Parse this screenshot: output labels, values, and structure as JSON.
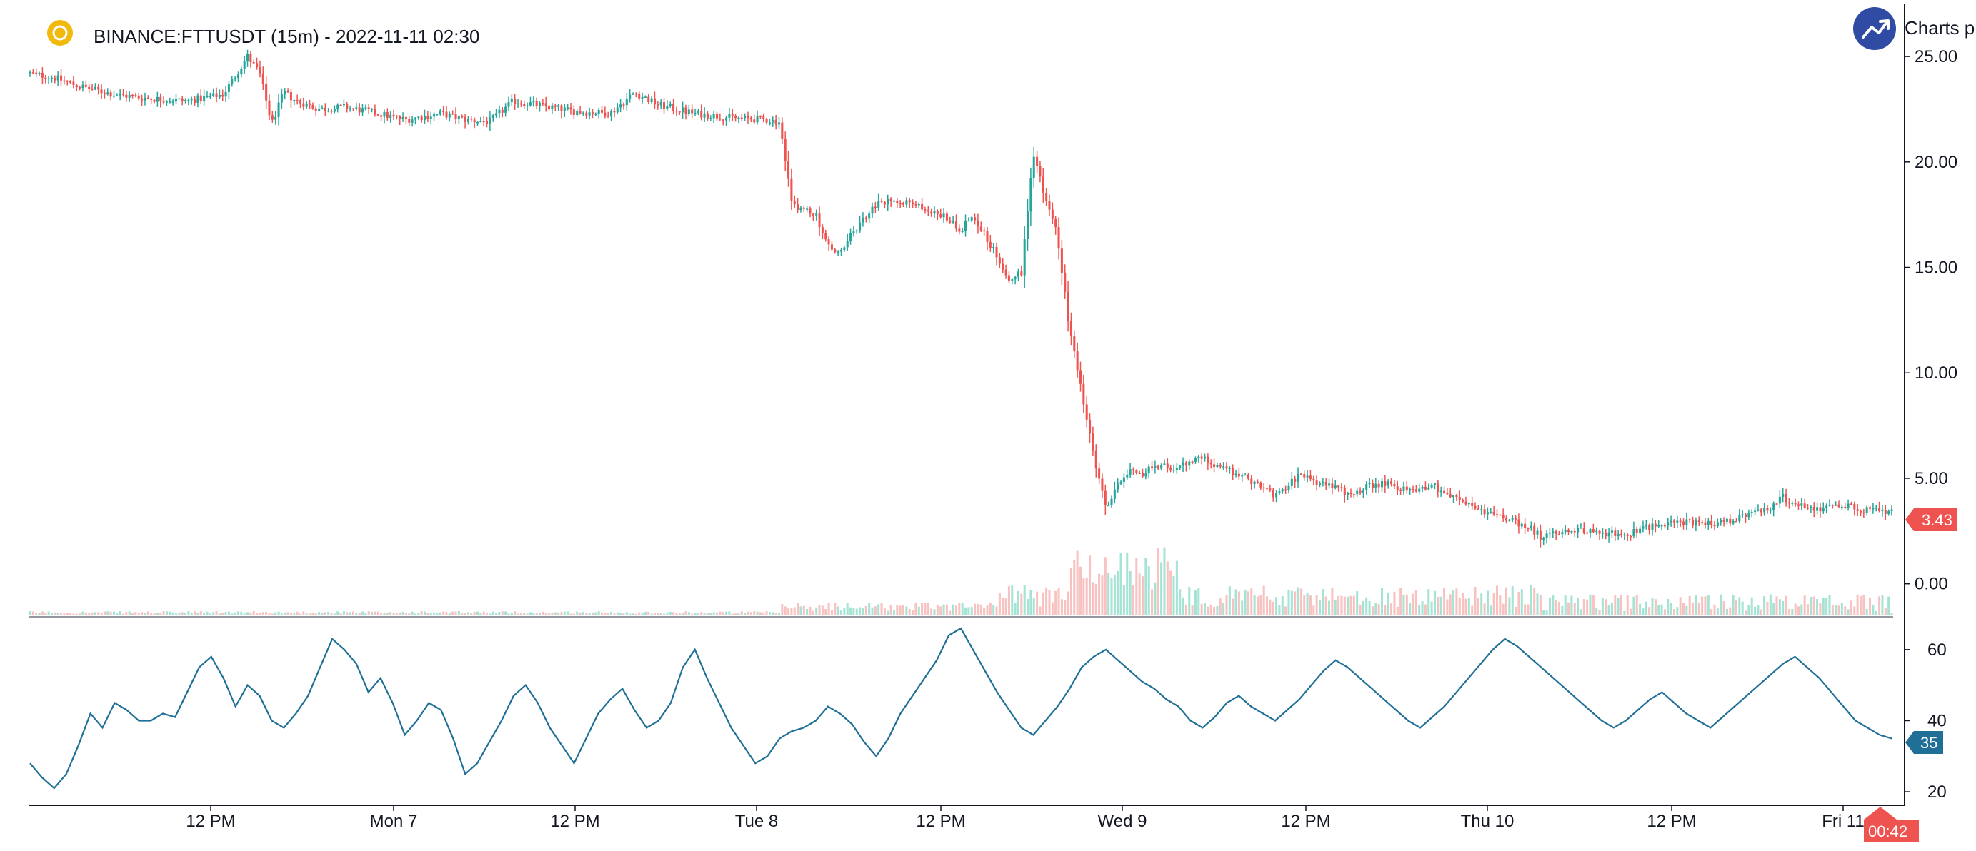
{
  "header": {
    "title": "BINANCE:FTTUSDT (15m) - 2022-11-11 02:30",
    "coin_icon": "coin-icon",
    "brand_icon": "trend-up-icon",
    "brand_label": "Charts p"
  },
  "colors": {
    "up": "#26a69a",
    "down": "#ef5350",
    "volume_up": "#a5e3d4",
    "volume_down": "#f8c2c0",
    "rsi_line": "#1f6f96",
    "coin": "#f0b90b",
    "brand": "#2f4ba3",
    "axis": "#131722"
  },
  "chart_data": [
    {
      "type": "candlestick",
      "symbol": "BINANCE:FTTUSDT",
      "interval": "15m",
      "title": "BINANCE:FTTUSDT (15m) - 2022-11-11 02:30",
      "ylim": [
        -1.5,
        27
      ],
      "y_ticks": [
        "25.00",
        "20.00",
        "15.00",
        "10.00",
        "5.00",
        "0.00"
      ],
      "x_ticks": [
        "12 PM",
        "Mon 7",
        "12 PM",
        "Tue 8",
        "12 PM",
        "Wed 9",
        "12 PM",
        "Thu 10",
        "12 PM",
        "Fri 11"
      ],
      "last_price_label": "3.43",
      "time_label": "00:42",
      "close_path": [
        [
          0,
          24.2
        ],
        [
          2,
          24.0
        ],
        [
          4,
          23.6
        ],
        [
          7,
          23.2
        ],
        [
          10,
          23.0
        ],
        [
          13,
          22.9
        ],
        [
          16,
          23.2
        ],
        [
          18,
          25.0
        ],
        [
          19,
          24.2
        ],
        [
          20,
          21.8
        ],
        [
          21,
          23.3
        ],
        [
          22,
          22.9
        ],
        [
          24,
          22.5
        ],
        [
          26,
          22.6
        ],
        [
          28,
          22.4
        ],
        [
          31,
          22.0
        ],
        [
          34,
          22.3
        ],
        [
          36,
          22.0
        ],
        [
          38,
          21.9
        ],
        [
          40,
          22.9
        ],
        [
          42,
          22.7
        ],
        [
          45,
          22.4
        ],
        [
          48,
          22.3
        ],
        [
          50,
          23.3
        ],
        [
          52,
          22.7
        ],
        [
          55,
          22.3
        ],
        [
          58,
          22.1
        ],
        [
          61,
          22.0
        ],
        [
          62,
          21.9
        ],
        [
          63,
          18.0
        ],
        [
          65,
          17.5
        ],
        [
          66,
          16.0
        ],
        [
          67,
          15.6
        ],
        [
          68,
          16.6
        ],
        [
          70,
          18.0
        ],
        [
          72,
          18.2
        ],
        [
          74,
          17.8
        ],
        [
          76,
          17.3
        ],
        [
          77,
          16.8
        ],
        [
          78,
          17.5
        ],
        [
          80,
          15.5
        ],
        [
          81,
          14.5
        ],
        [
          82,
          14.7
        ],
        [
          83,
          20.5
        ],
        [
          84,
          18.2
        ],
        [
          85,
          16.5
        ],
        [
          86,
          12.0
        ],
        [
          87,
          9.0
        ],
        [
          88,
          6.0
        ],
        [
          89,
          3.5
        ],
        [
          90,
          4.8
        ],
        [
          91,
          5.5
        ],
        [
          92,
          5.2
        ],
        [
          93,
          5.6
        ],
        [
          95,
          5.5
        ],
        [
          97,
          6.0
        ],
        [
          99,
          5.4
        ],
        [
          101,
          4.9
        ],
        [
          103,
          4.2
        ],
        [
          105,
          5.1
        ],
        [
          107,
          4.7
        ],
        [
          109,
          4.3
        ],
        [
          112,
          4.8
        ],
        [
          114,
          4.4
        ],
        [
          116,
          4.7
        ],
        [
          118,
          4.0
        ],
        [
          120,
          3.5
        ],
        [
          122,
          3.1
        ],
        [
          124,
          2.7
        ],
        [
          125,
          2.2
        ],
        [
          126,
          2.4
        ],
        [
          128,
          2.6
        ],
        [
          130,
          2.4
        ],
        [
          132,
          2.3
        ],
        [
          134,
          2.7
        ],
        [
          136,
          3.0
        ],
        [
          138,
          2.8
        ],
        [
          140,
          2.9
        ],
        [
          142,
          3.2
        ],
        [
          144,
          3.6
        ],
        [
          145,
          4.1
        ],
        [
          146,
          3.7
        ],
        [
          148,
          3.6
        ],
        [
          150,
          3.7
        ],
        [
          152,
          3.5
        ],
        [
          154,
          3.43
        ]
      ]
    },
    {
      "type": "line",
      "name": "",
      "ylim": [
        17,
        68
      ],
      "y_ticks": [
        "60",
        "40",
        "20"
      ],
      "last_value_label": "35",
      "x": [
        0,
        1,
        2,
        3,
        4,
        5,
        6,
        7,
        8,
        9,
        10,
        11,
        12,
        13,
        14,
        15,
        16,
        17,
        18,
        19,
        20,
        21,
        22,
        23,
        24,
        25,
        26,
        27,
        28,
        29,
        30,
        31,
        32,
        33,
        34,
        35,
        36,
        37,
        38,
        39,
        40,
        41,
        42,
        43,
        44,
        45,
        46,
        47,
        48,
        49,
        50,
        51,
        52,
        53,
        54,
        55,
        56,
        57,
        58,
        59,
        60,
        61,
        62,
        63,
        64,
        65,
        66,
        67,
        68,
        69,
        70,
        71,
        72,
        73,
        74,
        75,
        76,
        77,
        78,
        79,
        80,
        81,
        82,
        83,
        84,
        85,
        86,
        87,
        88,
        89,
        90,
        91,
        92,
        93,
        94,
        95,
        96,
        97,
        98,
        99,
        100,
        101,
        102,
        103,
        104,
        105,
        106,
        107,
        108,
        109,
        110,
        111,
        112,
        113,
        114,
        115,
        116,
        117,
        118,
        119,
        120,
        121,
        122,
        123,
        124,
        125,
        126,
        127,
        128,
        129,
        130,
        131,
        132,
        133,
        134,
        135,
        136,
        137,
        138,
        139,
        140,
        141,
        142,
        143,
        144,
        145,
        146,
        147,
        148,
        149,
        150,
        151,
        152,
        153,
        154
      ],
      "values": [
        28,
        24,
        21,
        25,
        33,
        42,
        38,
        45,
        43,
        40,
        40,
        42,
        41,
        48,
        55,
        58,
        52,
        44,
        50,
        47,
        40,
        38,
        42,
        47,
        55,
        63,
        60,
        56,
        48,
        52,
        45,
        36,
        40,
        45,
        43,
        35,
        25,
        28,
        34,
        40,
        47,
        50,
        45,
        38,
        33,
        28,
        35,
        42,
        46,
        49,
        43,
        38,
        40,
        45,
        55,
        60,
        52,
        45,
        38,
        33,
        28,
        30,
        35,
        37,
        38,
        40,
        44,
        42,
        39,
        34,
        30,
        35,
        42,
        47,
        52,
        57,
        64,
        66,
        60,
        54,
        48,
        43,
        38,
        36,
        40,
        44,
        49,
        55,
        58,
        60,
        57,
        54,
        51,
        49,
        46,
        44,
        40,
        38,
        41,
        45,
        47,
        44,
        42,
        40,
        43,
        46,
        50,
        54,
        57,
        55,
        52,
        49,
        46,
        43,
        40,
        38,
        41,
        44,
        48,
        52,
        56,
        60,
        63,
        61,
        58,
        55,
        52,
        49,
        46,
        43,
        40,
        38,
        40,
        43,
        46,
        48,
        45,
        42,
        40,
        38,
        41,
        44,
        47,
        50,
        53,
        56,
        58,
        55,
        52,
        48,
        44,
        40,
        38,
        36,
        35
      ]
    }
  ]
}
